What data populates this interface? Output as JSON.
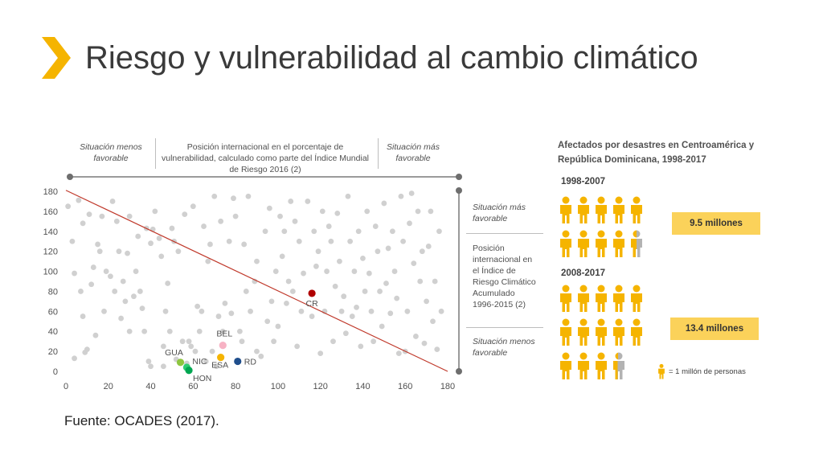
{
  "slide": {
    "title": "Riesgo y vulnerabilidad al cambio climático",
    "source": "Fuente: OCADES (2017).",
    "accent_color": "#f5b400"
  },
  "scatter_header": {
    "left": "Situación menos favorable",
    "center": "Posición internacional en el porcentaje de vulnerabilidad, calculado como parte del Índice Mundial de Riesgo 2016 (2)",
    "right": "Situación más favorable"
  },
  "scatter_side": {
    "top": "Situación más favorable",
    "middle": "Posición internacional en el Índice de Riesgo Climático Acumulado 1996-2015 (2)",
    "bottom": "Situación menos favorable"
  },
  "chart_data": [
    {
      "type": "scatter",
      "xlim": [
        0,
        180
      ],
      "ylim": [
        0,
        180
      ],
      "x_ticks": [
        0,
        20,
        40,
        60,
        80,
        100,
        120,
        140,
        160,
        180
      ],
      "y_ticks": [
        0,
        20,
        40,
        60,
        80,
        100,
        120,
        140,
        160,
        180
      ],
      "grid": false,
      "trend_line": {
        "x": [
          0,
          180
        ],
        "y": [
          181,
          0
        ],
        "color": "#c0392b"
      },
      "highlighted": [
        {
          "label": "GUA",
          "x": 54,
          "y": 9,
          "color": "#8dc63f"
        },
        {
          "label": "NIC",
          "x": 57,
          "y": 4,
          "color": "#2ecc71"
        },
        {
          "label": "HON",
          "x": 58,
          "y": 1,
          "color": "#00a651"
        },
        {
          "label": "ESA",
          "x": 73,
          "y": 14,
          "color": "#f5b400"
        },
        {
          "label": "BEL",
          "x": 74,
          "y": 26,
          "color": "#f7b2c4"
        },
        {
          "label": "RD",
          "x": 81,
          "y": 10,
          "color": "#1f4e8c"
        },
        {
          "label": "CR",
          "x": 116,
          "y": 78,
          "color": "#b00000"
        }
      ],
      "other_points_color": "#d0d0d0",
      "other_points": [
        [
          1,
          165
        ],
        [
          3,
          130
        ],
        [
          4,
          98
        ],
        [
          4,
          13
        ],
        [
          6,
          171
        ],
        [
          7,
          80
        ],
        [
          8,
          148
        ],
        [
          8,
          55
        ],
        [
          9,
          19
        ],
        [
          10,
          22
        ],
        [
          11,
          157
        ],
        [
          12,
          87
        ],
        [
          13,
          104
        ],
        [
          14,
          36
        ],
        [
          15,
          127
        ],
        [
          16,
          120
        ],
        [
          17,
          155
        ],
        [
          18,
          60
        ],
        [
          19,
          100
        ],
        [
          21,
          95
        ],
        [
          22,
          170
        ],
        [
          23,
          80
        ],
        [
          24,
          150
        ],
        [
          25,
          120
        ],
        [
          26,
          53
        ],
        [
          27,
          90
        ],
        [
          28,
          70
        ],
        [
          29,
          118
        ],
        [
          30,
          155
        ],
        [
          30,
          40
        ],
        [
          32,
          75
        ],
        [
          33,
          100
        ],
        [
          34,
          135
        ],
        [
          35,
          80
        ],
        [
          36,
          63
        ],
        [
          37,
          40
        ],
        [
          38,
          143
        ],
        [
          39,
          10
        ],
        [
          40,
          5
        ],
        [
          40,
          128
        ],
        [
          41,
          142
        ],
        [
          42,
          160
        ],
        [
          44,
          133
        ],
        [
          45,
          115
        ],
        [
          46,
          25
        ],
        [
          46,
          5
        ],
        [
          47,
          60
        ],
        [
          48,
          88
        ],
        [
          49,
          40
        ],
        [
          50,
          143
        ],
        [
          51,
          130
        ],
        [
          52,
          12
        ],
        [
          53,
          120
        ],
        [
          55,
          30
        ],
        [
          56,
          157
        ],
        [
          57,
          8
        ],
        [
          58,
          30
        ],
        [
          59,
          25
        ],
        [
          60,
          165
        ],
        [
          61,
          20
        ],
        [
          62,
          65
        ],
        [
          63,
          40
        ],
        [
          64,
          60
        ],
        [
          65,
          145
        ],
        [
          66,
          10
        ],
        [
          67,
          110
        ],
        [
          68,
          127
        ],
        [
          69,
          20
        ],
        [
          70,
          175
        ],
        [
          71,
          5
        ],
        [
          72,
          55
        ],
        [
          73,
          150
        ],
        [
          74,
          40
        ],
        [
          75,
          68
        ],
        [
          77,
          130
        ],
        [
          78,
          58
        ],
        [
          79,
          173
        ],
        [
          80,
          155
        ],
        [
          82,
          40
        ],
        [
          83,
          30
        ],
        [
          84,
          127
        ],
        [
          85,
          80
        ],
        [
          86,
          175
        ],
        [
          87,
          60
        ],
        [
          89,
          90
        ],
        [
          90,
          110
        ],
        [
          90,
          20
        ],
        [
          92,
          15
        ],
        [
          94,
          140
        ],
        [
          95,
          50
        ],
        [
          96,
          163
        ],
        [
          97,
          70
        ],
        [
          98,
          30
        ],
        [
          99,
          100
        ],
        [
          100,
          45
        ],
        [
          101,
          155
        ],
        [
          102,
          115
        ],
        [
          103,
          140
        ],
        [
          104,
          68
        ],
        [
          105,
          90
        ],
        [
          106,
          170
        ],
        [
          107,
          80
        ],
        [
          108,
          150
        ],
        [
          109,
          25
        ],
        [
          110,
          130
        ],
        [
          111,
          60
        ],
        [
          112,
          98
        ],
        [
          114,
          170
        ],
        [
          116,
          55
        ],
        [
          117,
          140
        ],
        [
          118,
          105
        ],
        [
          119,
          120
        ],
        [
          120,
          18
        ],
        [
          121,
          160
        ],
        [
          122,
          60
        ],
        [
          123,
          100
        ],
        [
          124,
          145
        ],
        [
          125,
          130
        ],
        [
          126,
          30
        ],
        [
          127,
          85
        ],
        [
          128,
          158
        ],
        [
          129,
          110
        ],
        [
          130,
          60
        ],
        [
          131,
          75
        ],
        [
          132,
          38
        ],
        [
          133,
          175
        ],
        [
          134,
          130
        ],
        [
          135,
          55
        ],
        [
          136,
          100
        ],
        [
          137,
          64
        ],
        [
          138,
          140
        ],
        [
          139,
          25
        ],
        [
          140,
          113
        ],
        [
          141,
          80
        ],
        [
          142,
          160
        ],
        [
          143,
          98
        ],
        [
          144,
          60
        ],
        [
          145,
          30
        ],
        [
          146,
          145
        ],
        [
          147,
          120
        ],
        [
          148,
          80
        ],
        [
          149,
          45
        ],
        [
          150,
          168
        ],
        [
          151,
          88
        ],
        [
          152,
          123
        ],
        [
          153,
          58
        ],
        [
          154,
          140
        ],
        [
          155,
          100
        ],
        [
          156,
          73
        ],
        [
          157,
          18
        ],
        [
          158,
          175
        ],
        [
          159,
          130
        ],
        [
          160,
          20
        ],
        [
          161,
          60
        ],
        [
          162,
          148
        ],
        [
          163,
          178
        ],
        [
          164,
          108
        ],
        [
          165,
          35
        ],
        [
          166,
          160
        ],
        [
          167,
          90
        ],
        [
          168,
          120
        ],
        [
          169,
          28
        ],
        [
          170,
          70
        ],
        [
          171,
          125
        ],
        [
          172,
          160
        ],
        [
          173,
          50
        ],
        [
          174,
          90
        ],
        [
          175,
          22
        ],
        [
          176,
          140
        ],
        [
          177,
          60
        ]
      ]
    },
    {
      "type": "pictogram",
      "title": "Afectados por desastres en Centroamérica y República Dominicana, 1998-2017",
      "unit": "= 1 millón de personas",
      "series": [
        {
          "name": "1998-2007",
          "value": 9.5,
          "label": "9.5 millones"
        },
        {
          "name": "2008-2017",
          "value": 13.4,
          "label": "13.4 millones"
        }
      ],
      "icon_color": "#f5b400",
      "partial_color": "#b3b3b3"
    }
  ]
}
